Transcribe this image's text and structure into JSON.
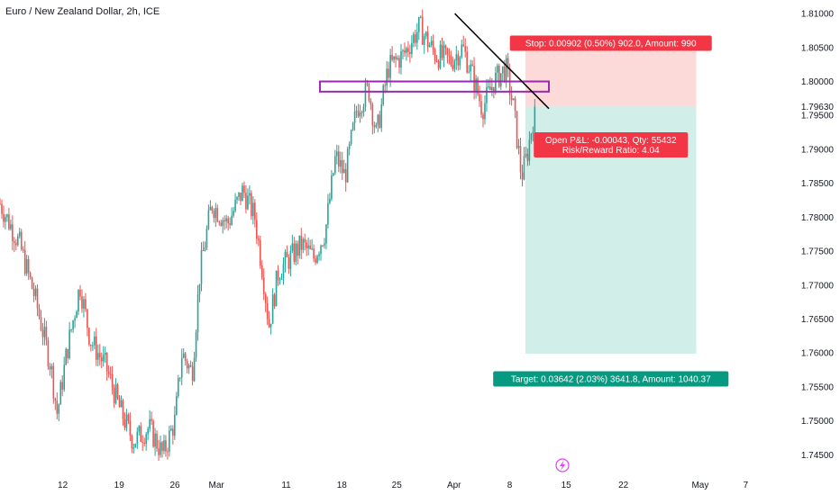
{
  "chart_data": {
    "type": "candlestick",
    "title": "Euro / New Zealand Dollar, 2h, ICE",
    "y_range": [
      1.742,
      1.812
    ],
    "x_domain": [
      0,
      100
    ],
    "y_ticks": [
      "1.81000",
      "1.80500",
      "1.80000",
      "1.79500",
      "1.79000",
      "1.78500",
      "1.78000",
      "1.77500",
      "1.77000",
      "1.76500",
      "1.76000",
      "1.75500",
      "1.75000",
      "1.74500"
    ],
    "current_price": "1.79630",
    "x_ticks": [
      {
        "label": "12",
        "x": 8.0
      },
      {
        "label": "19",
        "x": 15.2
      },
      {
        "label": "26",
        "x": 22.3
      },
      {
        "label": "Mar",
        "x": 27.6
      },
      {
        "label": "11",
        "x": 36.5
      },
      {
        "label": "18",
        "x": 43.6
      },
      {
        "label": "25",
        "x": 50.6
      },
      {
        "label": "Apr",
        "x": 57.9
      },
      {
        "label": "8",
        "x": 65.0
      },
      {
        "label": "15",
        "x": 72.2
      },
      {
        "label": "22",
        "x": 79.5
      },
      {
        "label": "May",
        "x": 89.3
      },
      {
        "label": "7",
        "x": 95.1
      }
    ],
    "colors": {
      "up": "#26a69a",
      "down": "#ef5350",
      "stop_zone": "#fcdada",
      "target_zone": "#d2eee9"
    },
    "price_path": [
      [
        0.0,
        1.782
      ],
      [
        2.5,
        1.776
      ],
      [
        4.5,
        1.768
      ],
      [
        6.5,
        1.758
      ],
      [
        7.3,
        1.751
      ],
      [
        8.5,
        1.76
      ],
      [
        10.2,
        1.77
      ],
      [
        11.5,
        1.762
      ],
      [
        13.5,
        1.758
      ],
      [
        15.2,
        1.752
      ],
      [
        17.0,
        1.747
      ],
      [
        19.0,
        1.749
      ],
      [
        20.8,
        1.745
      ],
      [
        22.3,
        1.75
      ],
      [
        23.2,
        1.76
      ],
      [
        24.5,
        1.757
      ],
      [
        25.5,
        1.772
      ],
      [
        27.0,
        1.782
      ],
      [
        29.0,
        1.779
      ],
      [
        31.0,
        1.784
      ],
      [
        32.5,
        1.78
      ],
      [
        33.5,
        1.772
      ],
      [
        34.3,
        1.764
      ],
      [
        35.5,
        1.772
      ],
      [
        37.0,
        1.774
      ],
      [
        38.5,
        1.776
      ],
      [
        40.0,
        1.774
      ],
      [
        41.5,
        1.778
      ],
      [
        42.8,
        1.789
      ],
      [
        44.0,
        1.786
      ],
      [
        45.5,
        1.796
      ],
      [
        47.0,
        1.799
      ],
      [
        48.0,
        1.792
      ],
      [
        49.5,
        1.802
      ],
      [
        51.5,
        1.804
      ],
      [
        53.5,
        1.808
      ],
      [
        55.5,
        1.804
      ],
      [
        57.5,
        1.803
      ],
      [
        59.0,
        1.805
      ],
      [
        60.5,
        1.8
      ],
      [
        61.5,
        1.796
      ],
      [
        63.0,
        1.8
      ],
      [
        64.5,
        1.802
      ],
      [
        65.5,
        1.796
      ],
      [
        66.5,
        1.786
      ],
      [
        67.2,
        1.789
      ],
      [
        68.2,
        1.796
      ]
    ],
    "trendline": {
      "start": [
        58.0,
        1.81
      ],
      "end": [
        70.0,
        1.796
      ]
    },
    "resistance_box": {
      "x0": 40.8,
      "x1": 70.0,
      "y0": 1.7985,
      "y1": 1.8
    },
    "position": {
      "x0": 67.0,
      "x1": 88.8,
      "entry": 1.7963,
      "stop": 1.805,
      "target": 1.7599,
      "stop_label": "Stop: 0.00902 (0.50%) 902.0, Amount: 990",
      "pnl_label_line1": "Open P&L: -0.00043, Qty: 55432",
      "pnl_label_line2": "Risk/Reward Ratio: 4.04",
      "target_label": "Target: 0.03642 (2.03%) 3641.8, Amount: 1040.37"
    }
  }
}
